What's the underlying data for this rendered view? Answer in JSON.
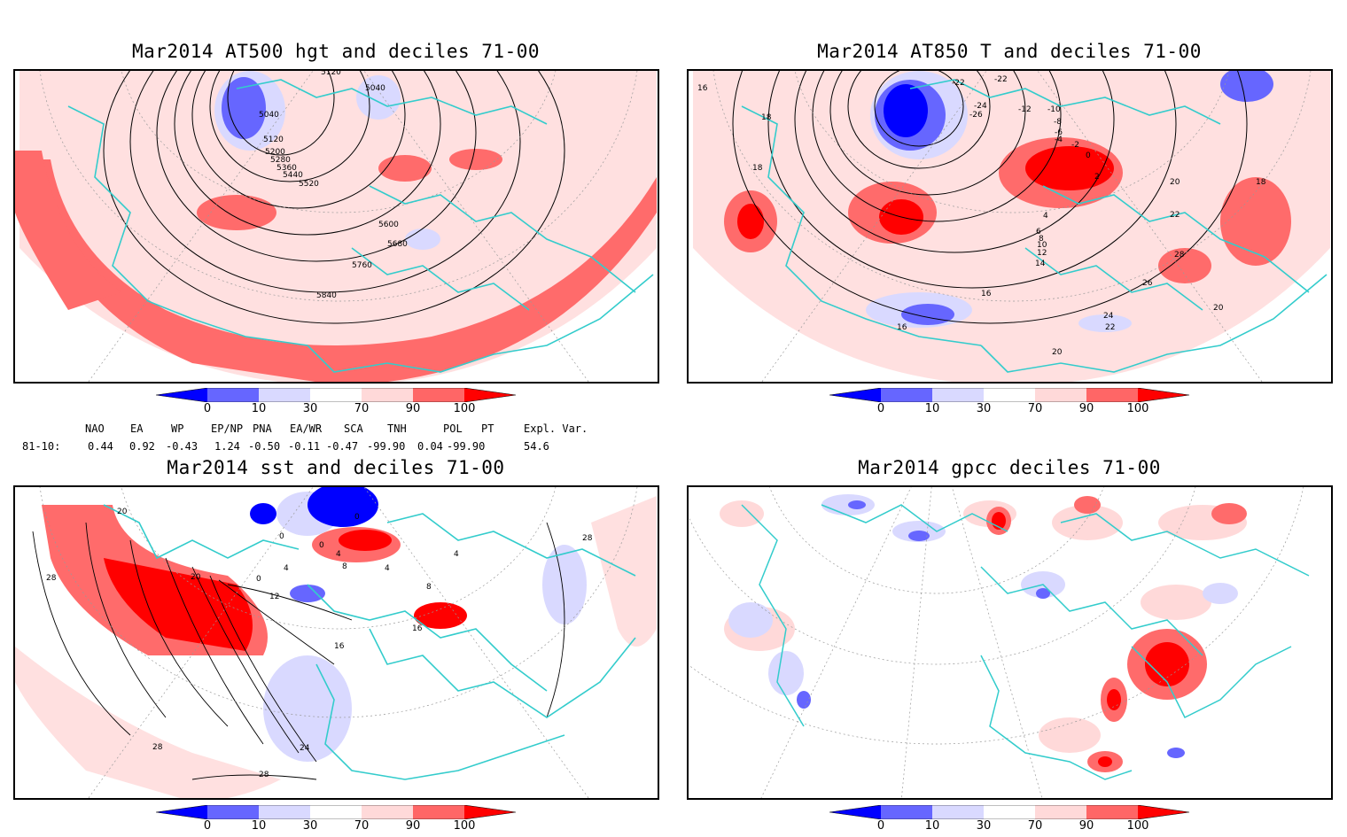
{
  "panels": [
    {
      "title": "Mar2014 AT500 hgt and deciles 71-00",
      "contour_labels": [
        "5120",
        "5040",
        "5040",
        "5120",
        "5200",
        "5280",
        "5360",
        "5440",
        "5520",
        "5600",
        "5680",
        "5760",
        "5840"
      ]
    },
    {
      "title": "Mar2014 AT850 T and deciles 71-00",
      "contour_labels": [
        "16",
        "18",
        "18",
        "-22",
        "-22",
        "-24",
        "-26",
        "-12",
        "-10",
        "-8",
        "-6",
        "-4",
        "-2",
        "0",
        "2",
        "4",
        "6",
        "8",
        "10",
        "12",
        "14",
        "16",
        "16",
        "18",
        "20",
        "20",
        "18",
        "22",
        "22",
        "24",
        "26",
        "28",
        "20"
      ]
    },
    {
      "title": "Mar2014 sst and deciles 71-00",
      "contour_labels": [
        "28",
        "20",
        "20",
        "0",
        "0",
        "4",
        "8",
        "4",
        "8",
        "4",
        "12",
        "16",
        "16",
        "24",
        "28",
        "28",
        "28"
      ]
    },
    {
      "title": "Mar2014 gpcc deciles 71-00",
      "contour_labels": []
    }
  ],
  "colorbar": {
    "ticks": [
      "0",
      "10",
      "30",
      "70",
      "90",
      "100"
    ],
    "colors": [
      "#0000ff",
      "#6666ff",
      "#d9d9ff",
      "#ffffff",
      "#ffd9d9",
      "#ff6666",
      "#ff0000"
    ]
  },
  "indices": {
    "row_label": "81-10:",
    "headers": [
      "NAO",
      "EA",
      "WP",
      "EP/NP",
      "PNA",
      "EA/WR",
      "SCA",
      "TNH",
      "POL",
      "PT",
      "Expl. Var."
    ],
    "values": [
      "0.44",
      "0.92",
      "-0.43",
      "1.24",
      "-0.50",
      "-0.11",
      "-0.47",
      "-99.90",
      "0.04",
      "-99.90",
      "54.6"
    ]
  },
  "map": {
    "coastline_color": "#33cccc",
    "grid_color": "#999999"
  }
}
